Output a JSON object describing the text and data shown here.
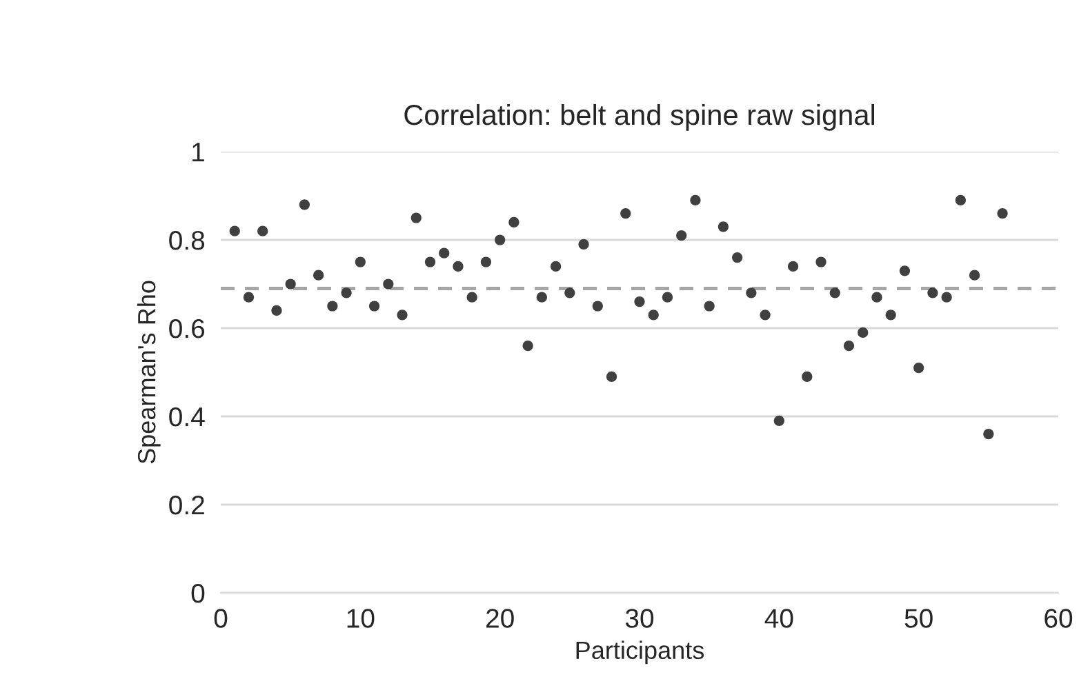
{
  "chart_data": {
    "type": "scatter",
    "title": "Correlation: belt and spine raw signal",
    "xlabel": "Participants",
    "ylabel": "Spearman's Rho",
    "x": [
      1,
      2,
      3,
      4,
      5,
      6,
      7,
      8,
      9,
      10,
      11,
      12,
      13,
      14,
      15,
      16,
      17,
      18,
      19,
      20,
      21,
      22,
      23,
      24,
      25,
      26,
      27,
      28,
      29,
      30,
      31,
      32,
      33,
      34,
      35,
      36,
      37,
      38,
      39,
      40,
      41,
      42,
      43,
      44,
      45,
      46,
      47,
      48,
      49,
      50,
      51,
      52,
      53,
      54,
      55,
      56
    ],
    "series": [
      {
        "color": "#404040",
        "values": [
          0.82,
          0.67,
          0.82,
          0.64,
          0.7,
          0.88,
          0.72,
          0.65,
          0.68,
          0.75,
          0.65,
          0.7,
          0.63,
          0.85,
          0.75,
          0.77,
          0.74,
          0.67,
          0.75,
          0.8,
          0.84,
          0.56,
          0.67,
          0.74,
          0.68,
          0.79,
          0.65,
          0.49,
          0.86,
          0.66,
          0.63,
          0.67,
          0.81,
          0.89,
          0.65,
          0.83,
          0.76,
          0.68,
          0.63,
          0.39,
          0.74,
          0.49,
          0.75,
          0.68,
          0.56,
          0.59,
          0.67,
          0.63,
          0.73,
          0.51,
          0.68,
          0.67,
          0.89,
          0.72,
          0.36,
          0.86
        ]
      }
    ],
    "xlim": [
      0,
      60
    ],
    "xticks": [
      0,
      10,
      20,
      30,
      40,
      50,
      60
    ],
    "ylim": [
      0,
      1
    ],
    "yticks": [
      0,
      0.2,
      0.4,
      0.6,
      0.8,
      1
    ],
    "ref_lines": [
      {
        "axis": "y",
        "value": 0.69,
        "color": "#a6a6a6",
        "line_style": "dashed"
      }
    ],
    "grid": "y",
    "marker": "circle"
  }
}
